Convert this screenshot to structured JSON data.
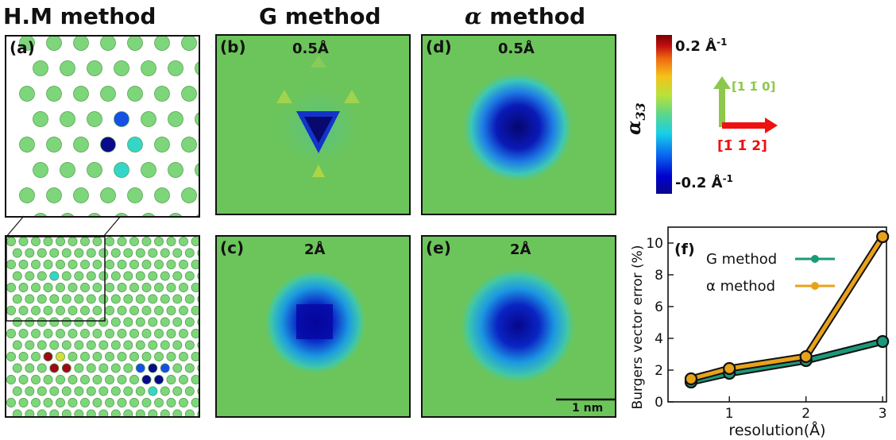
{
  "titles": {
    "hm": "H.M method",
    "g_greek": "G method",
    "alpha_suffix": "method",
    "alpha_symbol": "α"
  },
  "panels": {
    "a": {
      "label": "(a)"
    },
    "b": {
      "label": "(b)",
      "resolution": "0.5Å"
    },
    "c": {
      "label": "(c)",
      "resolution": "2Å"
    },
    "d": {
      "label": "(d)",
      "resolution": "0.5Å"
    },
    "e": {
      "label": "(e)",
      "resolution": "2Å"
    },
    "f": {
      "label": "(f)"
    }
  },
  "scale_bar": {
    "label": "1 nm"
  },
  "colorbar": {
    "max_label": "0.2 Å",
    "min_label": "-0.2 Å",
    "unit_exp": "-1",
    "quantity": "α",
    "quantity_sub": "33",
    "colors": [
      "#08088c",
      "#0000d0",
      "#0a6cf0",
      "#18d0e8",
      "#5cd68a",
      "#b8e23a",
      "#f5c21a",
      "#ef6a10",
      "#c21010",
      "#7a0000"
    ]
  },
  "axes_arrows": {
    "up": "[1 1̄ 0]",
    "right": "[1̄ 1̄ 2]",
    "up_color": "#8cc84b",
    "right_color": "#ee1111"
  },
  "chart_data": {
    "type": "line",
    "xlabel": "resolution(Å)",
    "ylabel": "Burgers vector error (%)",
    "xlim": [
      0.2,
      3.05
    ],
    "ylim": [
      0,
      11
    ],
    "xticks": [
      1,
      2,
      3
    ],
    "yticks": [
      0,
      2,
      4,
      6,
      8,
      10
    ],
    "legend_position": "top-left",
    "grid": false,
    "series": [
      {
        "name": "G method",
        "color": "#1a9a7a",
        "x": [
          0.5,
          1,
          2,
          3
        ],
        "y": [
          1.25,
          1.8,
          2.6,
          3.8
        ]
      },
      {
        "name": "α method",
        "color": "#e8a21a",
        "x": [
          0.5,
          1,
          2,
          3
        ],
        "y": [
          1.45,
          2.1,
          2.85,
          10.4
        ]
      }
    ]
  },
  "colors": {
    "field_bg": "#6cc55a",
    "atom_green": "#7ed67a",
    "core_dark": "#0a0a8a",
    "core_blue": "#1650e8",
    "cyan": "#34d6c8",
    "red": "#a0081a",
    "orange": "#ec7a12",
    "yellow": "#d8dc3a"
  }
}
